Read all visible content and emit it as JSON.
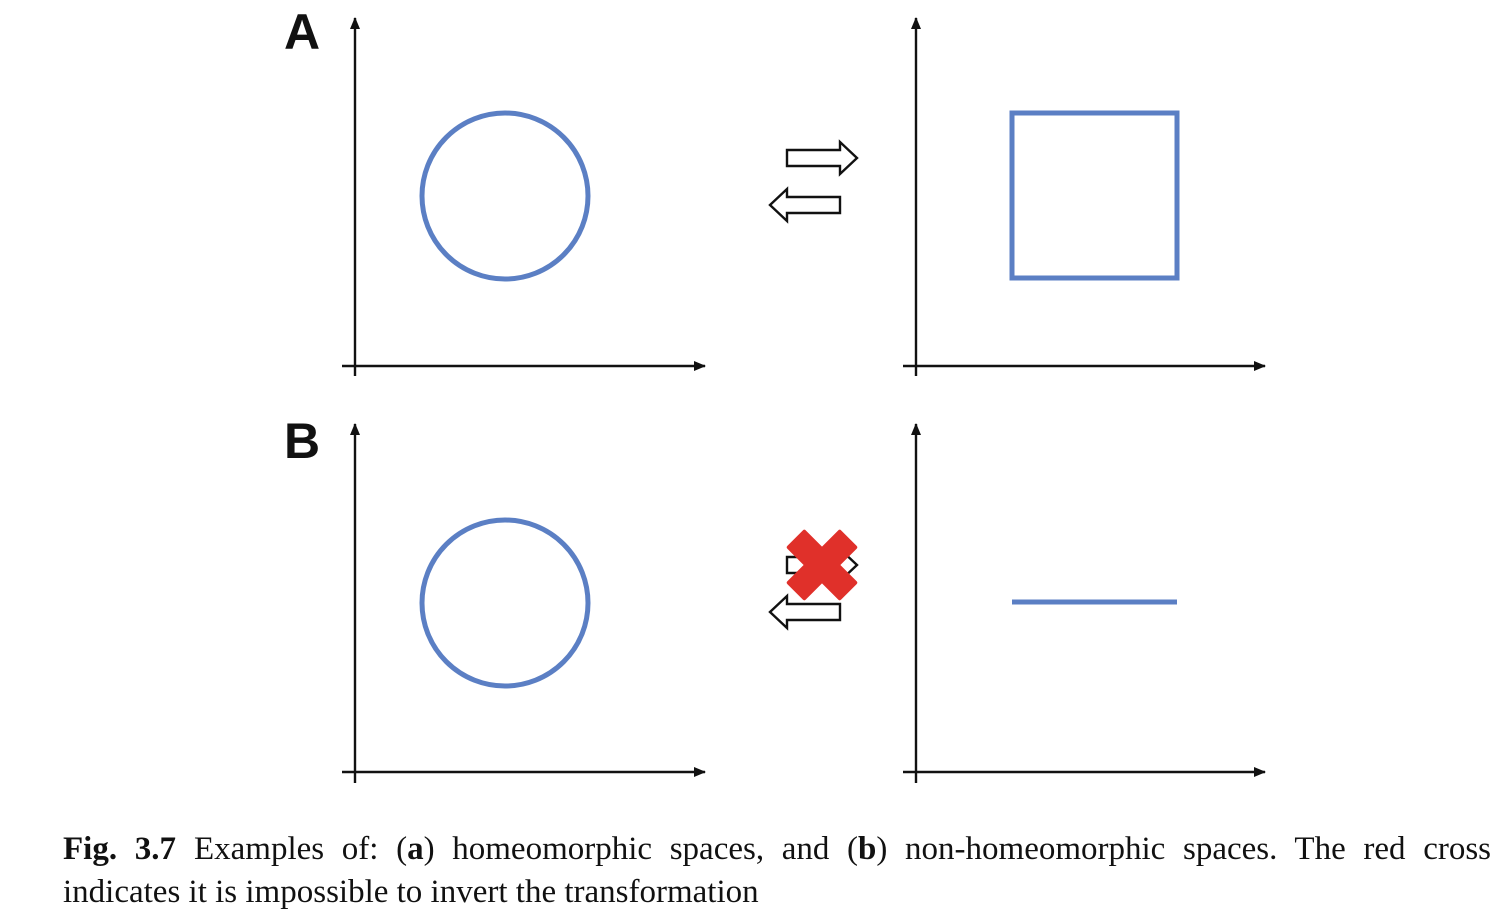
{
  "panels": [
    {
      "label": "A",
      "left_shape": "circle",
      "right_shape": "square",
      "arrows": [
        "right-arrow",
        "left-arrow"
      ],
      "crossed": false
    },
    {
      "label": "B",
      "left_shape": "circle",
      "right_shape": "line",
      "arrows": [
        "right-arrow",
        "left-arrow"
      ],
      "crossed": true
    }
  ],
  "colors": {
    "shape": "#5b7fc4",
    "cross": "#e0302a",
    "axis": "#111111"
  },
  "caption": {
    "fig_number": "Fig. 3.7",
    "part1": "Examples of: (",
    "a": "a",
    "part2": ") homeomorphic spaces, and (",
    "b": "b",
    "part3": ") non-homeomorphic spaces. The red cross indicates it is impossible to invert the transformation"
  }
}
